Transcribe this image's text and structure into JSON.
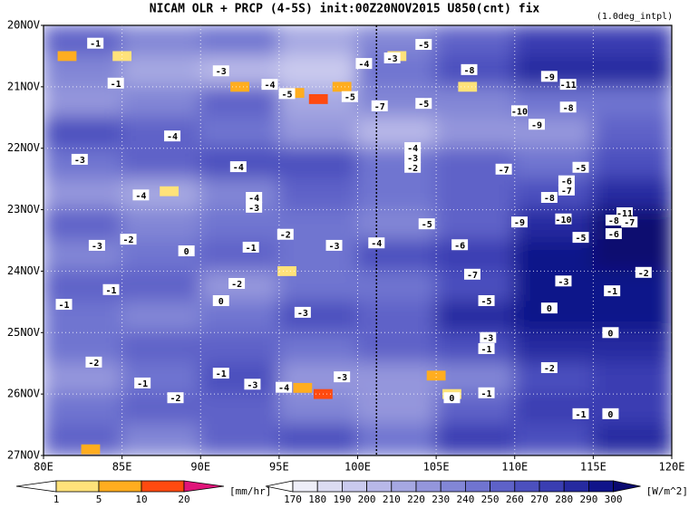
{
  "chart_data": {
    "type": "hovmoller",
    "title": "NICAM  OLR + PRCP (4-5S) init:00Z20NOV2015 U850(cnt) fix",
    "subtitle": "(1.0deg_intpl)",
    "xlim": [
      80,
      120
    ],
    "xticks": [
      {
        "value": 80,
        "label": "80E"
      },
      {
        "value": 85,
        "label": "85E"
      },
      {
        "value": 90,
        "label": "90E"
      },
      {
        "value": 95,
        "label": "95E"
      },
      {
        "value": 100,
        "label": "100E"
      },
      {
        "value": 105,
        "label": "105E"
      },
      {
        "value": 110,
        "label": "110E"
      },
      {
        "value": 115,
        "label": "115E"
      },
      {
        "value": 120,
        "label": "120E"
      }
    ],
    "ylim": [
      20,
      27
    ],
    "y_reversed": true,
    "yticks": [
      {
        "value": 20,
        "label": "20NOV"
      },
      {
        "value": 21,
        "label": "21NOV"
      },
      {
        "value": 22,
        "label": "22NOV"
      },
      {
        "value": 23,
        "label": "23NOV"
      },
      {
        "value": 24,
        "label": "24NOV"
      },
      {
        "value": 25,
        "label": "25NOV"
      },
      {
        "value": 26,
        "label": "26NOV"
      },
      {
        "value": 27,
        "label": "27NOV"
      }
    ],
    "grid": true,
    "reference_lon": 101.2,
    "olr": {
      "lon": [
        82.5,
        87.5,
        92.5,
        97.5,
        102.5,
        107.5,
        112.5,
        117.5
      ],
      "day": [
        20.25,
        20.75,
        21.25,
        21.75,
        22.25,
        22.75,
        23.25,
        23.75,
        24.25,
        24.75,
        25.25,
        25.75,
        26.25,
        26.75
      ],
      "values": [
        [
          250,
          230,
          240,
          210,
          230,
          250,
          270,
          270
        ],
        [
          230,
          210,
          200,
          190,
          240,
          260,
          280,
          280
        ],
        [
          220,
          230,
          250,
          210,
          230,
          230,
          240,
          240
        ],
        [
          260,
          250,
          240,
          220,
          200,
          220,
          220,
          250
        ],
        [
          240,
          250,
          260,
          260,
          240,
          250,
          240,
          260
        ],
        [
          220,
          210,
          230,
          250,
          240,
          250,
          260,
          280
        ],
        [
          250,
          230,
          240,
          240,
          230,
          250,
          280,
          300
        ],
        [
          230,
          240,
          250,
          240,
          260,
          270,
          290,
          300
        ],
        [
          250,
          250,
          220,
          240,
          240,
          260,
          290,
          290
        ],
        [
          240,
          230,
          240,
          260,
          250,
          280,
          290,
          290
        ],
        [
          240,
          250,
          250,
          240,
          250,
          260,
          280,
          280
        ],
        [
          220,
          240,
          260,
          220,
          220,
          230,
          260,
          270
        ],
        [
          240,
          250,
          250,
          230,
          220,
          250,
          270,
          270
        ],
        [
          250,
          230,
          250,
          260,
          240,
          270,
          260,
          280
        ]
      ]
    },
    "precip": {
      "lon": [
        81.5,
        83,
        85,
        88,
        92.5,
        96,
        97.5,
        99,
        95.5,
        96.5,
        97.8,
        102.5,
        105,
        106,
        107
      ],
      "day": [
        20.5,
        26.9,
        20.5,
        22.7,
        21.0,
        21.1,
        21.2,
        21.0,
        24.0,
        25.9,
        26.0,
        20.5,
        25.7,
        26.0,
        21.0
      ],
      "values": [
        5,
        5,
        3,
        3,
        5,
        8,
        12,
        8,
        3,
        8,
        12,
        3,
        8,
        3,
        3
      ]
    },
    "contour_labels": {
      "lon": [
        83.3,
        84.6,
        91.3,
        94.4,
        95.5,
        99.5,
        100.4,
        102.2,
        104.2,
        101.4,
        104.2,
        107.1,
        112.2,
        113.4,
        110.3,
        113.4,
        111.4,
        88.2,
        82.3,
        92.4,
        103.5,
        103.5,
        103.5,
        109.3,
        114.2,
        113.3,
        113.3,
        112.2,
        86.2,
        93.4,
        93.4,
        117.0,
        116.3,
        117.3,
        110.3,
        113.1,
        104.4,
        85.4,
        83.4,
        95.4,
        101.2,
        98.5,
        106.5,
        116.3,
        114.2,
        89.1,
        93.2,
        107.3,
        118.2,
        113.1,
        116.2,
        112.2,
        108.2,
        84.3,
        92.3,
        91.3,
        96.5,
        116.1,
        108.3,
        108.2,
        112.2,
        91.3,
        86.3,
        88.4,
        93.3,
        95.3,
        99.0,
        108.2,
        106.0,
        114.2,
        116.1,
        83.2,
        81.3
      ],
      "day": [
        20.29,
        20.94,
        20.74,
        20.96,
        21.11,
        21.16,
        20.62,
        20.53,
        20.31,
        21.31,
        21.27,
        20.72,
        20.83,
        20.96,
        21.39,
        21.33,
        21.61,
        21.8,
        22.18,
        22.3,
        21.99,
        22.15,
        22.31,
        22.34,
        22.31,
        22.53,
        22.68,
        22.8,
        22.76,
        22.8,
        22.96,
        23.05,
        23.17,
        23.2,
        23.2,
        23.15,
        23.23,
        23.48,
        23.58,
        23.4,
        23.54,
        23.58,
        23.57,
        23.39,
        23.45,
        23.67,
        23.61,
        24.05,
        24.02,
        24.16,
        24.32,
        24.6,
        24.48,
        24.3,
        24.2,
        24.48,
        24.67,
        25.0,
        25.08,
        25.26,
        25.57,
        25.66,
        25.82,
        26.06,
        25.84,
        25.89,
        25.72,
        25.98,
        26.06,
        26.32,
        26.32,
        25.48,
        24.54
      ],
      "values": [
        -1,
        -1,
        -3,
        -4,
        -5,
        -5,
        -4,
        -3,
        -5,
        -7,
        -5,
        -8,
        -9,
        -11,
        -10,
        -8,
        -9,
        -4,
        -3,
        -4,
        -4,
        -3,
        -2,
        -7,
        -5,
        -6,
        -7,
        -8,
        -4,
        -4,
        -3,
        -11,
        -8,
        -7,
        -9,
        -10,
        -5,
        -2,
        -3,
        -2,
        -4,
        -3,
        -6,
        -6,
        -5,
        0,
        -1,
        -7,
        -2,
        -3,
        -1,
        0,
        -5,
        -1,
        -2,
        0,
        -3,
        0,
        -3,
        -1,
        -2,
        -1,
        -1,
        -2,
        -3,
        -4,
        -3,
        -1,
        0,
        -1,
        0,
        -2,
        -1
      ]
    },
    "precip_colorbar": {
      "levels": [
        1,
        5,
        10,
        20
      ],
      "colors": [
        "#ffffff",
        "#ffe27a",
        "#ffad1f",
        "#ff4a10",
        "#e0157a"
      ],
      "unit": "[mm/hr]"
    },
    "olr_colorbar": {
      "levels": [
        170,
        180,
        190,
        200,
        210,
        220,
        230,
        240,
        250,
        260,
        270,
        280,
        290,
        300
      ],
      "colors": [
        "#ffffff",
        "#eeeef8",
        "#dcdcf2",
        "#cacaee",
        "#b8b8e8",
        "#a6a8e2",
        "#9496dc",
        "#8286d6",
        "#7074d0",
        "#5e62c8",
        "#4c50be",
        "#3a3eb2",
        "#262aa0",
        "#10148a",
        "#0a0a70"
      ],
      "unit": "[W/m^2]"
    }
  }
}
